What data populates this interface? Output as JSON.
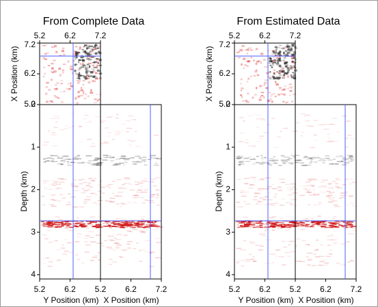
{
  "panels": [
    {
      "title": "From Complete Data",
      "inset_ylabel": "X Position (km)",
      "depth_label": "Depth (km)",
      "left_xlabel": "Y Position (km)",
      "right_xlabel": "X Position (km)",
      "top_xticks": [
        5.2,
        6.2,
        7.2
      ],
      "inset_yticks": [
        7.2,
        6.2,
        5.2
      ],
      "depth_ticks": [
        0,
        1,
        2,
        3,
        4
      ],
      "left_xticks": [
        5.2,
        6.2
      ],
      "right_xticks": [
        5.2,
        6.2,
        7.2
      ]
    },
    {
      "title": "From Estimated Data",
      "inset_ylabel": "X Position (km)",
      "depth_label": "Depth (km)",
      "left_xlabel": "Y Position (km)",
      "right_xlabel": "X Position (km)",
      "top_xticks": [
        5.2,
        6.2,
        7.2
      ],
      "inset_yticks": [
        7.2,
        6.2,
        5.2
      ],
      "depth_ticks": [
        0,
        1,
        2,
        3,
        4
      ],
      "left_xticks": [
        5.2,
        6.2
      ],
      "right_xticks": [
        5.2,
        6.2,
        7.2
      ]
    }
  ]
}
